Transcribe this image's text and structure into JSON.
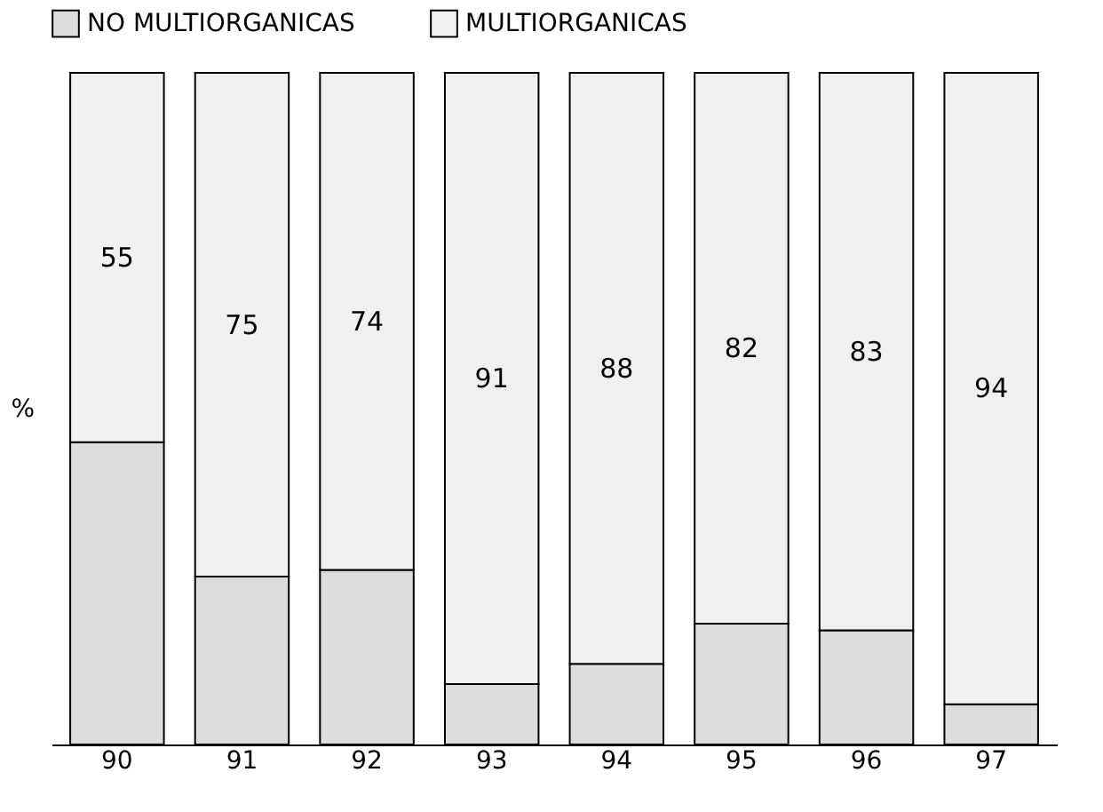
{
  "chart_data": {
    "type": "bar",
    "stacked": true,
    "ylabel": "%",
    "categories": [
      "90",
      "91",
      "92",
      "93",
      "94",
      "95",
      "96",
      "97"
    ],
    "series": [
      {
        "name": "NO MULTIORGANICAS",
        "color": "#dcdcdc",
        "values": [
          45,
          25,
          26,
          9,
          12,
          18,
          17,
          6
        ]
      },
      {
        "name": "MULTIORGANICAS",
        "color": "#f0f0f0",
        "values": [
          55,
          75,
          74,
          91,
          88,
          82,
          83,
          94
        ],
        "value_labels": [
          "55",
          "75",
          "74",
          "91",
          "88",
          "82",
          "83",
          "94"
        ]
      }
    ],
    "ylim": [
      0,
      100
    ],
    "legend": "top",
    "grid": false
  }
}
